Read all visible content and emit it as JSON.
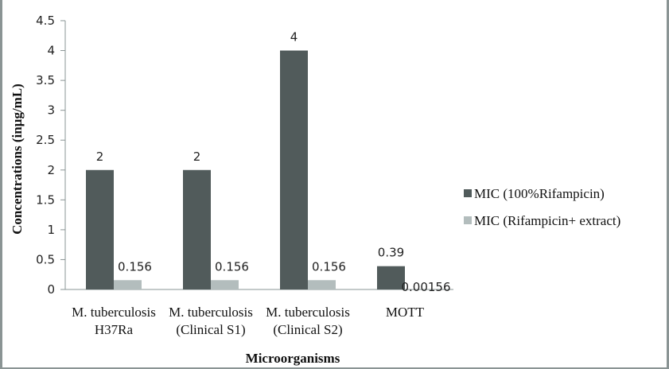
{
  "chart_data": {
    "type": "bar",
    "title": "",
    "xlabel": "Microorganisms",
    "ylabel": "Concentrations (inµg/mL)",
    "ylim": [
      0,
      4.5
    ],
    "yticks": [
      "0",
      "0.5",
      "1",
      "1.5",
      "2",
      "2.5",
      "3",
      "3.5",
      "4",
      "4.5"
    ],
    "categories": [
      [
        "M. tuberculosis",
        "H37Ra"
      ],
      [
        "M. tuberculosis",
        "(Clinical S1)"
      ],
      [
        "M. tuberculosis",
        "(Clinical S2)"
      ],
      [
        "MOTT"
      ]
    ],
    "series": [
      {
        "name": "MIC (100%Rifampicin)",
        "color": "#515b5b",
        "values": [
          2,
          2,
          4,
          0.39
        ],
        "labels": [
          "2",
          "2",
          "4",
          "0.39"
        ]
      },
      {
        "name": "MIC (Rifampicin+ extract)",
        "color": "#b3bdbd",
        "values": [
          0.156,
          0.156,
          0.156,
          0.00156
        ],
        "labels": [
          "0.156",
          "0.156",
          "0.156",
          "0.00156"
        ]
      }
    ],
    "grid": false,
    "legend": "right"
  }
}
